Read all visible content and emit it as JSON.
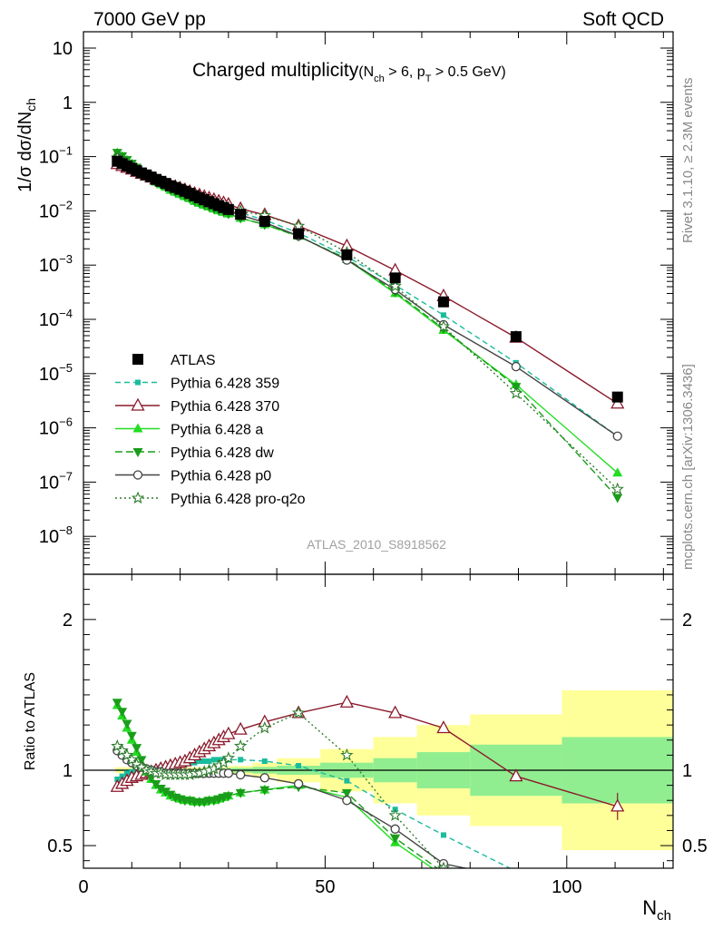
{
  "header": {
    "left": "7000 GeV pp",
    "right": "Soft QCD"
  },
  "side_labels": {
    "right_top": "Rivet 3.1.10, ≥ 2.3M events",
    "right_bottom": "mcplots.cern.ch [arXiv:1306.3436]"
  },
  "chart_data": [
    {
      "type": "line",
      "panel": "main",
      "title_main": "Charged multiplicity",
      "title_cut1_pre": "(N",
      "title_cut1_sub": "ch",
      "title_cut1_post": " > 6, p",
      "title_cut2_sub": "T",
      "title_cut2_post": " > 0.5 GeV)",
      "ylabel_pre": "1/σ dσ/dN",
      "ylabel_sub": "ch",
      "y_scale": "log",
      "ylim": [
        2e-09,
        20
      ],
      "xlim": [
        0,
        122
      ],
      "y_tick_labels": [
        {
          "mant": "10",
          "exp": "",
          "value": 10
        },
        {
          "mant": "1",
          "exp": "",
          "value": 1
        },
        {
          "mant": "10",
          "exp": "−1",
          "value": 0.1
        },
        {
          "mant": "10",
          "exp": "−2",
          "value": 0.01
        },
        {
          "mant": "10",
          "exp": "−3",
          "value": 0.001
        },
        {
          "mant": "10",
          "exp": "−4",
          "value": 0.0001
        },
        {
          "mant": "10",
          "exp": "−5",
          "value": 1e-05
        },
        {
          "mant": "10",
          "exp": "−6",
          "value": 1e-06
        },
        {
          "mant": "10",
          "exp": "−7",
          "value": 1e-07
        },
        {
          "mant": "10",
          "exp": "−8",
          "value": 1e-08
        }
      ],
      "watermark": "ATLAS_2010_S8918562",
      "legend_position": "lower-left",
      "data": {
        "name": "ATLAS",
        "x": [
          7,
          8,
          9,
          10,
          11,
          12,
          13,
          14,
          15,
          16,
          17,
          18,
          19,
          20,
          21,
          22,
          23,
          24,
          25,
          26,
          27,
          28,
          29,
          30,
          32.5,
          37.5,
          44.5,
          54.5,
          64.5,
          74.5,
          89.5,
          110.5
        ],
        "y": [
          0.082,
          0.074,
          0.067,
          0.061,
          0.055,
          0.05,
          0.046,
          0.042,
          0.038,
          0.035,
          0.032,
          0.029,
          0.027,
          0.025,
          0.023,
          0.021,
          0.019,
          0.0175,
          0.0161,
          0.0148,
          0.0136,
          0.0125,
          0.0115,
          0.0106,
          0.0086,
          0.0064,
          0.0038,
          0.00155,
          0.00058,
          0.00021,
          4.8e-05,
          3.7e-06
        ]
      },
      "series": [
        {
          "name": "Pythia 6.428 359",
          "color": "#1abc9c",
          "dash": "6,4",
          "marker": "square-small",
          "ratio": [
            0.94,
            0.96,
            0.98,
            0.99,
            1.0,
            1.0,
            1.01,
            1.01,
            1.01,
            1.02,
            1.02,
            1.03,
            1.03,
            1.04,
            1.04,
            1.05,
            1.05,
            1.06,
            1.06,
            1.06,
            1.07,
            1.07,
            1.07,
            1.07,
            1.07,
            1.06,
            1.03,
            0.93,
            0.74,
            0.57,
            0.33,
            0.19
          ]
        },
        {
          "name": "Pythia 6.428 370",
          "color": "#8b1a2b",
          "dash": "",
          "marker": "triangle-open",
          "ratio": [
            0.89,
            0.91,
            0.93,
            0.95,
            0.96,
            0.97,
            0.98,
            0.99,
            1.0,
            1.01,
            1.02,
            1.03,
            1.04,
            1.05,
            1.06,
            1.08,
            1.1,
            1.12,
            1.14,
            1.16,
            1.18,
            1.2,
            1.22,
            1.24,
            1.27,
            1.32,
            1.38,
            1.45,
            1.38,
            1.28,
            0.96,
            0.76
          ],
          "ratio_err": [
            0.01,
            0.01,
            0.01,
            0.01,
            0.01,
            0.01,
            0.01,
            0.01,
            0.01,
            0.01,
            0.01,
            0.01,
            0.01,
            0.01,
            0.01,
            0.01,
            0.01,
            0.01,
            0.01,
            0.01,
            0.01,
            0.01,
            0.01,
            0.01,
            0.01,
            0.01,
            0.01,
            0.01,
            0.01,
            0.02,
            0.03,
            0.09
          ]
        },
        {
          "name": "Pythia 6.428 a",
          "color": "#22dd22",
          "dash": "",
          "marker": "triangle-filled",
          "ratio": [
            1.43,
            1.36,
            1.28,
            1.2,
            1.12,
            1.05,
            0.99,
            0.94,
            0.9,
            0.87,
            0.85,
            0.83,
            0.82,
            0.81,
            0.8,
            0.8,
            0.79,
            0.79,
            0.79,
            0.8,
            0.8,
            0.81,
            0.82,
            0.83,
            0.85,
            0.87,
            0.9,
            0.82,
            0.52,
            0.3,
            0.13,
            0.04
          ]
        },
        {
          "name": "Pythia 6.428 dw",
          "color": "#1a9d1a",
          "dash": "8,4",
          "marker": "triangle-down-filled",
          "ratio": [
            1.45,
            1.39,
            1.31,
            1.23,
            1.15,
            1.07,
            1.0,
            0.95,
            0.91,
            0.88,
            0.86,
            0.84,
            0.82,
            0.81,
            0.8,
            0.8,
            0.79,
            0.79,
            0.79,
            0.8,
            0.8,
            0.81,
            0.82,
            0.83,
            0.85,
            0.87,
            0.89,
            0.85,
            0.55,
            0.32,
            0.12,
            0.014
          ]
        },
        {
          "name": "Pythia 6.428 p0",
          "color": "#444444",
          "dash": "",
          "marker": "circle-open",
          "ratio": [
            1.13,
            1.1,
            1.07,
            1.05,
            1.03,
            1.02,
            1.01,
            1.0,
            0.99,
            0.99,
            0.98,
            0.98,
            0.98,
            0.98,
            0.98,
            0.98,
            0.98,
            0.98,
            0.98,
            0.98,
            0.98,
            0.98,
            0.98,
            0.98,
            0.97,
            0.95,
            0.91,
            0.8,
            0.61,
            0.38,
            0.28,
            0.19
          ]
        },
        {
          "name": "Pythia 6.428 pro-q2o",
          "color": "#2d7d2d",
          "dash": "2,3",
          "marker": "star-open",
          "ratio": [
            1.16,
            1.13,
            1.1,
            1.07,
            1.04,
            1.02,
            1.0,
            0.99,
            0.98,
            0.98,
            0.97,
            0.97,
            0.97,
            0.97,
            0.97,
            0.97,
            0.98,
            0.98,
            0.99,
            1.0,
            1.01,
            1.03,
            1.05,
            1.08,
            1.16,
            1.28,
            1.38,
            1.1,
            0.7,
            0.35,
            0.09,
            0.02
          ]
        }
      ]
    },
    {
      "type": "line",
      "panel": "ratio",
      "ylabel": "Ratio to ATLAS",
      "ylim": [
        0.35,
        2.3
      ],
      "xlim": [
        0,
        122
      ],
      "y_ticks": [
        0.5,
        1,
        2
      ],
      "y_tick_labels": [
        "0.5",
        "1",
        "2"
      ],
      "x_ticks": [
        0,
        50,
        100
      ],
      "x_tick_labels": [
        "0",
        "50",
        "100"
      ],
      "xlabel_pre": "N",
      "xlabel_sub": "ch",
      "bands": {
        "stat_color": "#90ee90",
        "total_color": "#ffff99",
        "edges": [
          6.5,
          7.5,
          8.5,
          9.5,
          10.5,
          11.5,
          12.5,
          13.5,
          14.5,
          15.5,
          16.5,
          17.5,
          18.5,
          19.5,
          20.5,
          21.5,
          22.5,
          23.5,
          24.5,
          25.5,
          26.5,
          27.5,
          28.5,
          29.5,
          30,
          35,
          40,
          49,
          60,
          69,
          80,
          99,
          122
        ],
        "stat": [
          0.005,
          0.005,
          0.005,
          0.005,
          0.005,
          0.005,
          0.005,
          0.005,
          0.005,
          0.006,
          0.006,
          0.006,
          0.006,
          0.006,
          0.007,
          0.007,
          0.008,
          0.008,
          0.009,
          0.01,
          0.011,
          0.012,
          0.013,
          0.014,
          0.016,
          0.022,
          0.03,
          0.05,
          0.08,
          0.12,
          0.17,
          0.22
        ],
        "total": [
          0.02,
          0.02,
          0.02,
          0.02,
          0.02,
          0.02,
          0.02,
          0.02,
          0.02,
          0.02,
          0.02,
          0.02,
          0.02,
          0.02,
          0.02,
          0.02,
          0.02,
          0.02,
          0.02,
          0.02,
          0.02,
          0.02,
          0.02,
          0.02,
          0.03,
          0.05,
          0.08,
          0.14,
          0.22,
          0.3,
          0.37,
          0.53
        ]
      }
    }
  ]
}
